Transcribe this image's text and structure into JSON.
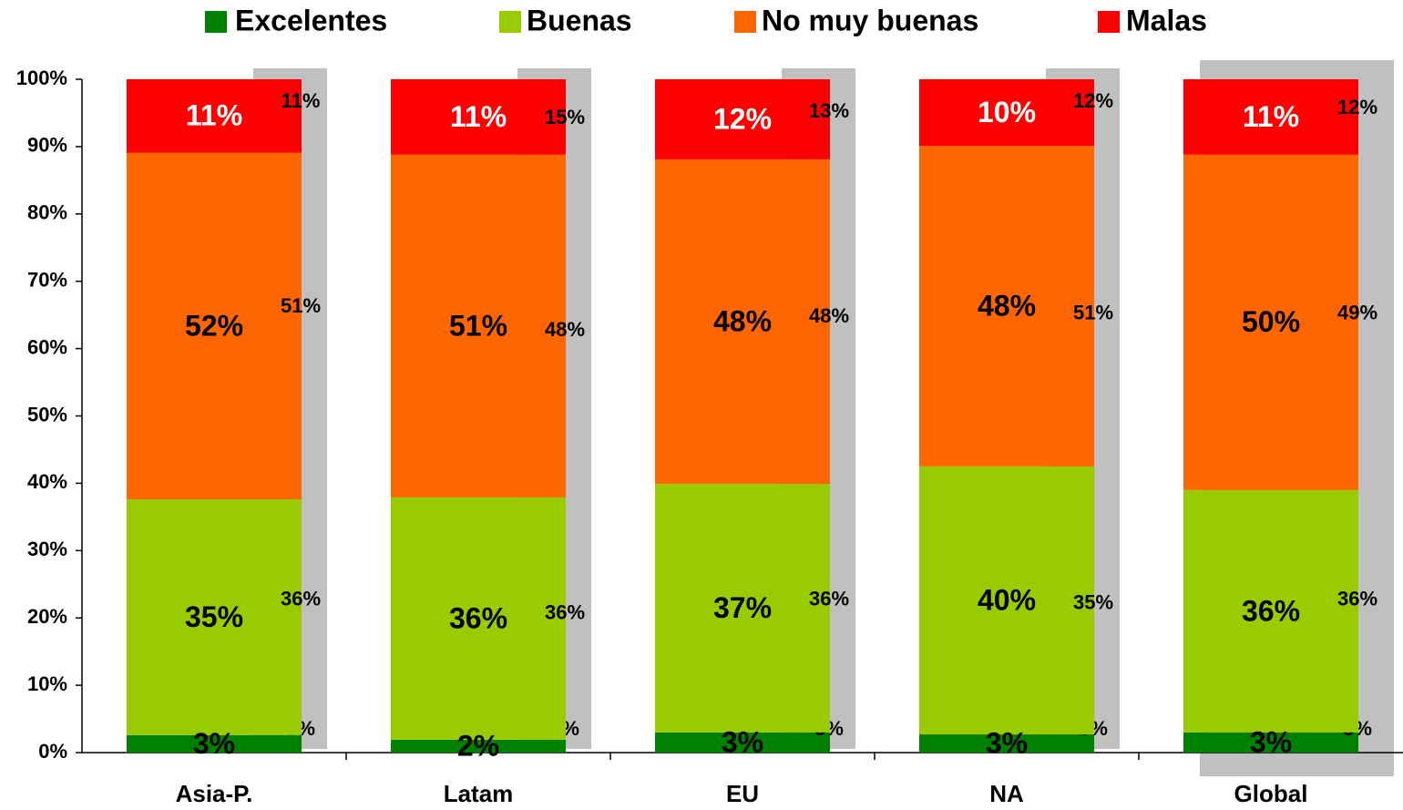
{
  "chart_data": {
    "type": "stacked_bar",
    "categories": [
      "Asia-P.",
      "Latam",
      "EU",
      "NA",
      "Global"
    ],
    "series": [
      {
        "name": "Excelentes",
        "color": "#008000",
        "label_color": "#000000",
        "values": [
          2.6,
          1.9,
          3.0,
          2.7,
          3.0
        ],
        "value_labels": [
          "3%",
          "2%",
          "3%",
          "3%",
          "3%"
        ],
        "prev_values": [
          3,
          1,
          3,
          3,
          3
        ],
        "prev_labels": [
          "3%",
          "1%",
          "3%",
          "3%",
          "3%"
        ]
      },
      {
        "name": "Buenas",
        "color": "#99cc00",
        "label_color": "#000000",
        "values": [
          35.0,
          36.0,
          36.9,
          39.8,
          36.0
        ],
        "value_labels": [
          "35%",
          "36%",
          "37%",
          "40%",
          "36%"
        ],
        "prev_values": [
          36,
          36,
          36,
          35,
          36
        ],
        "prev_labels": [
          "36%",
          "36%",
          "36%",
          "35%",
          "36%"
        ]
      },
      {
        "name": "No muy buenas",
        "color": "#ff6600",
        "label_color": "#000000",
        "values": [
          51.5,
          50.9,
          48.2,
          47.6,
          49.8
        ],
        "value_labels": [
          "52%",
          "51%",
          "48%",
          "48%",
          "50%"
        ],
        "prev_values": [
          51,
          48,
          48,
          51,
          49
        ],
        "prev_labels": [
          "51%",
          "48%",
          "48%",
          "51%",
          "49%"
        ]
      },
      {
        "name": "Malas",
        "color": "#ff0000",
        "label_color": "#ffffff",
        "values": [
          10.9,
          11.2,
          11.9,
          9.9,
          11.2
        ],
        "value_labels": [
          "11%",
          "11%",
          "12%",
          "10%",
          "11%"
        ],
        "prev_values": [
          11,
          15,
          13,
          12,
          12
        ],
        "prev_labels": [
          "11%",
          "15%",
          "13%",
          "12%",
          "12%"
        ]
      }
    ],
    "ylim": [
      0,
      100
    ],
    "yticks": [
      {
        "value": 0,
        "label": "0%"
      },
      {
        "value": 10,
        "label": "10%"
      },
      {
        "value": 20,
        "label": "20%"
      },
      {
        "value": 30,
        "label": "30%"
      },
      {
        "value": 40,
        "label": "40%"
      },
      {
        "value": 50,
        "label": "50%"
      },
      {
        "value": 60,
        "label": "60%"
      },
      {
        "value": 70,
        "label": "70%"
      },
      {
        "value": 80,
        "label": "80%"
      },
      {
        "value": 90,
        "label": "90%"
      },
      {
        "value": 100,
        "label": "100%"
      }
    ],
    "legend": "top",
    "comparison_color": "#c0c0c0"
  }
}
